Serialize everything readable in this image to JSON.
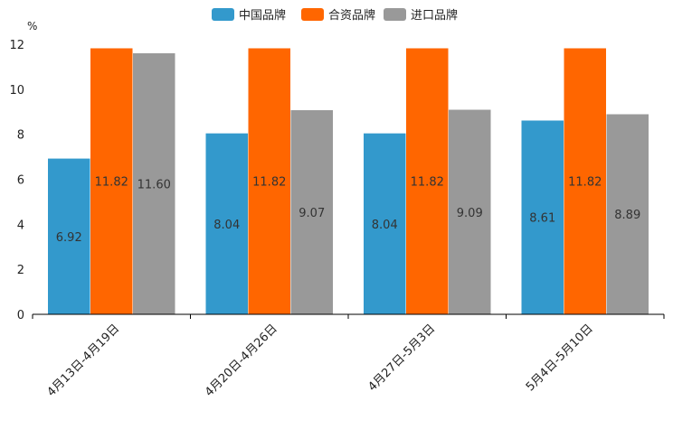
{
  "chart_data": {
    "type": "bar",
    "title": "",
    "xlabel": "",
    "ylabel": "%",
    "ylim": [
      0,
      12
    ],
    "yticks": [
      0,
      2,
      4,
      6,
      8,
      10,
      12
    ],
    "grid": false,
    "legend_position": "top-center",
    "categories": [
      "4月13日-4月19日",
      "4月20日-4月26日",
      "4月27日-5月3日",
      "5月4日-5月10日"
    ],
    "series": [
      {
        "name": "中国品牌",
        "color": "#3399CC",
        "values": [
          6.92,
          8.04,
          8.04,
          8.61
        ],
        "labels": [
          "6.92",
          "8.04",
          "8.04",
          "8.61"
        ]
      },
      {
        "name": "合资品牌",
        "color": "#FF6600",
        "values": [
          11.82,
          11.82,
          11.82,
          11.82
        ],
        "labels": [
          "11.82",
          "11.82",
          "11.82",
          "11.82"
        ]
      },
      {
        "name": "进口品牌",
        "color": "#999999",
        "values": [
          11.6,
          9.07,
          9.09,
          8.89
        ],
        "labels": [
          "11.60",
          "9.07",
          "9.09",
          "8.89"
        ]
      }
    ]
  }
}
